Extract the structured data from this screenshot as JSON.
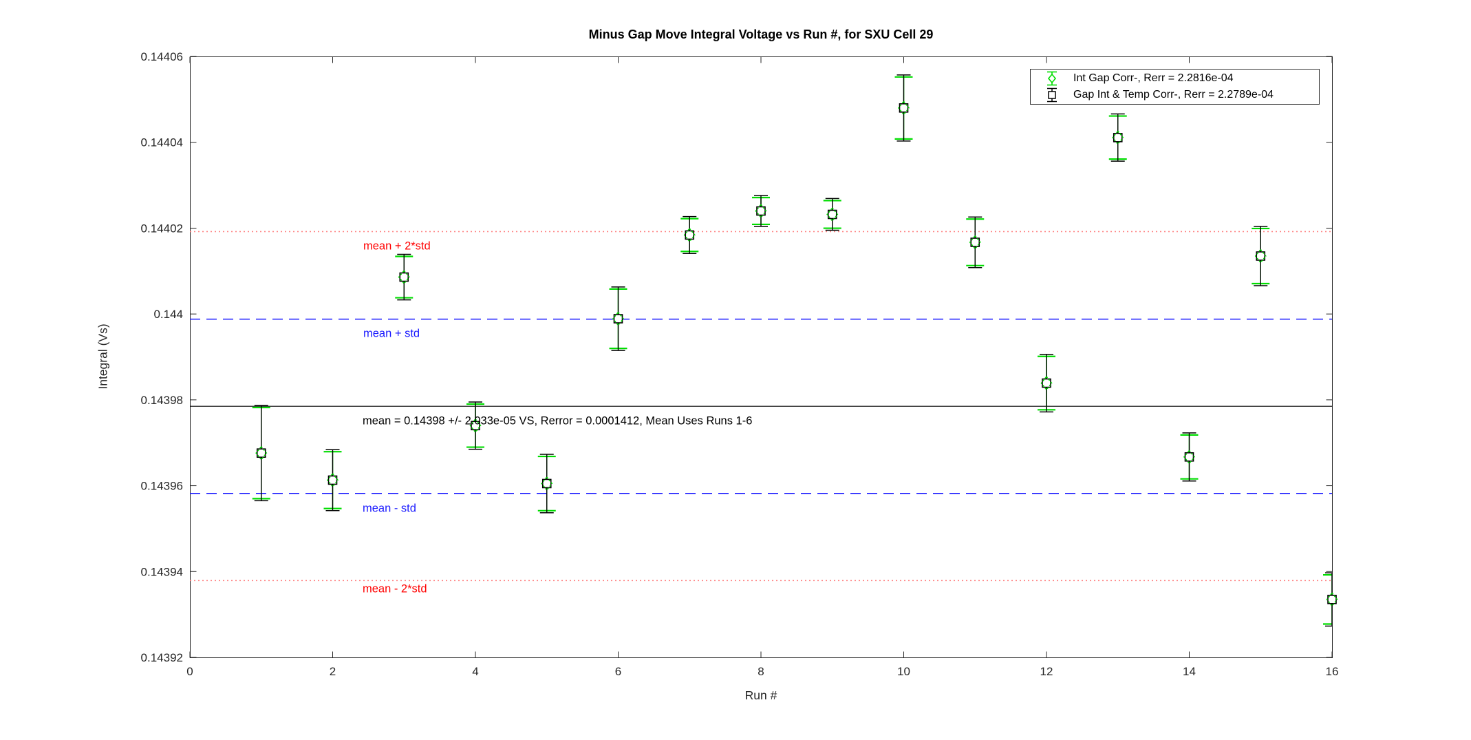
{
  "figure": {
    "title": "Minus Gap Move Integral Voltage vs Run #, for SXU Cell 29",
    "xlabel": "Run #",
    "ylabel": "Integral (Vs)"
  },
  "chart_data": {
    "type": "scatter",
    "title": "Minus Gap Move Integral Voltage vs Run #, for SXU Cell 29",
    "xlabel": "Run #",
    "ylabel": "Integral (Vs)",
    "xlim": [
      0,
      16
    ],
    "ylim": [
      0.14392,
      0.14406
    ],
    "x_ticks": [
      0,
      2,
      4,
      6,
      8,
      10,
      12,
      14,
      16
    ],
    "x_tick_labels": [
      "0",
      "2",
      "4",
      "6",
      "8",
      "10",
      "12",
      "14",
      "16"
    ],
    "y_ticks": [
      0.14392,
      0.14394,
      0.14396,
      0.14398,
      0.144,
      0.14402,
      0.14404,
      0.14406
    ],
    "y_tick_labels": [
      "0.14392",
      "0.14394",
      "0.14396",
      "0.14398",
      "0.144",
      "0.14402",
      "0.14404",
      "0.14406"
    ],
    "grid": false,
    "legend_position": "top-right",
    "series": [
      {
        "name": "Int Gap Corr-, Rerr = 2.2816e-04",
        "marker": "diamond",
        "color": "#00dd00"
      },
      {
        "name": "Gap Int & Temp Corr-, Rerr = 2.2789e-04",
        "marker": "square",
        "color": "#000000"
      }
    ],
    "note": "Both series are visually coincident error-bar points at each run",
    "x": [
      1,
      2,
      3,
      4,
      5,
      6,
      7,
      8,
      9,
      10,
      11,
      12,
      13,
      14,
      15,
      16
    ],
    "values": [
      0.1439676,
      0.1439613,
      0.1440086,
      0.143974,
      0.1439605,
      0.1439989,
      0.1440184,
      0.144024,
      0.1440232,
      0.144048,
      0.1440167,
      0.1439839,
      0.1440411,
      0.1439667,
      0.1440135,
      0.1439335
    ],
    "errors": [
      1.11e-05,
      7.1e-06,
      5.3e-06,
      5.5e-06,
      6.8e-06,
      7.4e-06,
      4.3e-06,
      3.6e-06,
      3.7e-06,
      7.7e-06,
      5.9e-06,
      6.7e-06,
      5.5e-06,
      5.6e-06,
      6.9e-06,
      6.2e-06
    ],
    "mean": 0.1439785,
    "std": 2.033e-05,
    "reference_lines": [
      {
        "id": "mean_plus_2std",
        "label": "mean + 2*std",
        "value": 0.1440192,
        "style": "dotted",
        "color": "#ff8080",
        "label_color": "#ff0000"
      },
      {
        "id": "mean_plus_std",
        "label": "mean + std",
        "value": 0.1439988,
        "style": "dashed",
        "color": "#1a1aff",
        "label_color": "#1a1aff"
      },
      {
        "id": "mean",
        "label": "mean = 0.14398 +/- 2.033e-05 VS, Rerror = 0.0001412, Mean Uses Runs 1-6",
        "value": 0.1439785,
        "style": "solid",
        "color": "#000000",
        "label_color": "#000000"
      },
      {
        "id": "mean_minus_std",
        "label": "mean - std",
        "value": 0.1439582,
        "style": "dashed",
        "color": "#1a1aff",
        "label_color": "#1a1aff"
      },
      {
        "id": "mean_minus_2std",
        "label": "mean - 2*std",
        "value": 0.1439379,
        "style": "dotted",
        "color": "#ff8080",
        "label_color": "#ff0000"
      }
    ]
  }
}
